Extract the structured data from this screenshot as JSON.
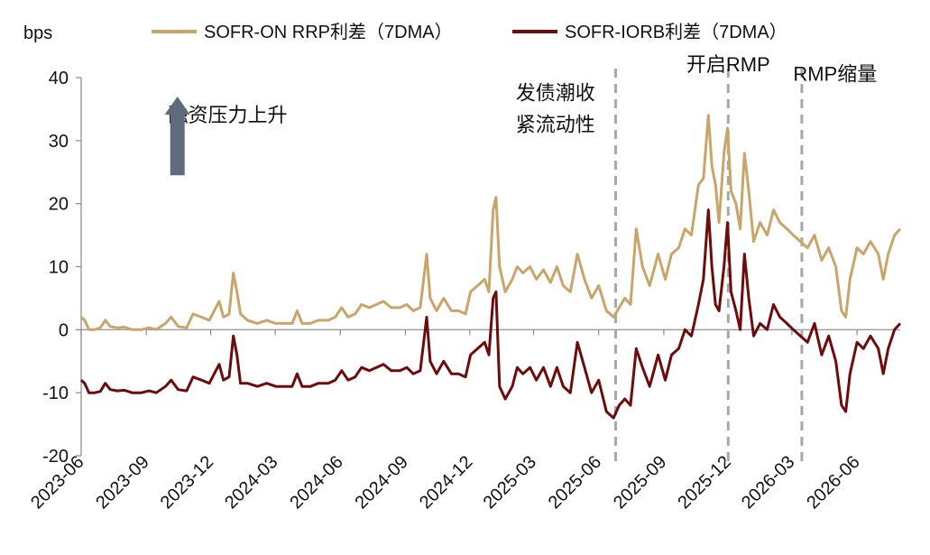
{
  "chart_data": {
    "type": "line",
    "ylabel": "bps",
    "ylim": [
      -20,
      40
    ],
    "yticks": [
      40,
      30,
      20,
      10,
      0,
      -10,
      -20
    ],
    "xlim": [
      "2023-06",
      "2026-08"
    ],
    "xticks": [
      "2023-06",
      "2023-09",
      "2023-12",
      "2024-03",
      "2024-06",
      "2024-09",
      "2024-12",
      "2025-03",
      "2025-06",
      "2025-09",
      "2025-12",
      "2026-03",
      "2026-06"
    ],
    "grid": false,
    "legend": "top",
    "colors": {
      "series1": "#c9a56a",
      "series2": "#6e0b0b",
      "arrow": "#5f6a7d",
      "vline": "#a8a8a8"
    },
    "series": [
      {
        "name": "SOFR-ON RRP利差（7DMA）",
        "points": [
          [
            "2023-06-01",
            2
          ],
          [
            "2023-06-06",
            1.5
          ],
          [
            "2023-06-12",
            0
          ],
          [
            "2023-06-20",
            0
          ],
          [
            "2023-06-28",
            0.3
          ],
          [
            "2023-07-05",
            1.5
          ],
          [
            "2023-07-12",
            0.5
          ],
          [
            "2023-07-22",
            0.3
          ],
          [
            "2023-08-01",
            0.4
          ],
          [
            "2023-08-12",
            0
          ],
          [
            "2023-08-25",
            0
          ],
          [
            "2023-09-05",
            0.3
          ],
          [
            "2023-09-15",
            0
          ],
          [
            "2023-09-28",
            1
          ],
          [
            "2023-10-06",
            2
          ],
          [
            "2023-10-16",
            0.5
          ],
          [
            "2023-10-28",
            0.3
          ],
          [
            "2023-11-06",
            2.5
          ],
          [
            "2023-11-18",
            2
          ],
          [
            "2023-11-29",
            1.5
          ],
          [
            "2023-12-06",
            3
          ],
          [
            "2023-12-13",
            4.5
          ],
          [
            "2023-12-19",
            2
          ],
          [
            "2023-12-27",
            2.5
          ],
          [
            "2024-01-02",
            9
          ],
          [
            "2024-01-07",
            6
          ],
          [
            "2024-01-12",
            2.5
          ],
          [
            "2024-01-22",
            1.5
          ],
          [
            "2024-02-05",
            1
          ],
          [
            "2024-02-18",
            1.5
          ],
          [
            "2024-03-02",
            1
          ],
          [
            "2024-03-15",
            1
          ],
          [
            "2024-03-25",
            1
          ],
          [
            "2024-04-01",
            3
          ],
          [
            "2024-04-08",
            1
          ],
          [
            "2024-04-20",
            1
          ],
          [
            "2024-05-01",
            1.5
          ],
          [
            "2024-05-15",
            1.5
          ],
          [
            "2024-05-25",
            2
          ],
          [
            "2024-06-03",
            3.5
          ],
          [
            "2024-06-12",
            2
          ],
          [
            "2024-06-22",
            2.5
          ],
          [
            "2024-07-01",
            4
          ],
          [
            "2024-07-12",
            3.5
          ],
          [
            "2024-07-22",
            4
          ],
          [
            "2024-08-01",
            4.5
          ],
          [
            "2024-08-12",
            3.5
          ],
          [
            "2024-08-24",
            3.5
          ],
          [
            "2024-09-03",
            4
          ],
          [
            "2024-09-12",
            3
          ],
          [
            "2024-09-22",
            3.5
          ],
          [
            "2024-10-01",
            12
          ],
          [
            "2024-10-06",
            5
          ],
          [
            "2024-10-15",
            3
          ],
          [
            "2024-10-25",
            5
          ],
          [
            "2024-11-05",
            3
          ],
          [
            "2024-11-15",
            3
          ],
          [
            "2024-11-25",
            2.5
          ],
          [
            "2024-12-02",
            6
          ],
          [
            "2024-12-12",
            7
          ],
          [
            "2024-12-22",
            8
          ],
          [
            "2024-12-28",
            6
          ],
          [
            "2025-01-03",
            19
          ],
          [
            "2025-01-07",
            21
          ],
          [
            "2025-01-12",
            10
          ],
          [
            "2025-01-20",
            6
          ],
          [
            "2025-01-30",
            8
          ],
          [
            "2025-02-06",
            10
          ],
          [
            "2025-02-14",
            9
          ],
          [
            "2025-02-24",
            10
          ],
          [
            "2025-03-05",
            8
          ],
          [
            "2025-03-15",
            9.5
          ],
          [
            "2025-03-25",
            7.5
          ],
          [
            "2025-04-03",
            10
          ],
          [
            "2025-04-12",
            7
          ],
          [
            "2025-04-22",
            6
          ],
          [
            "2025-05-02",
            12
          ],
          [
            "2025-05-12",
            8
          ],
          [
            "2025-05-22",
            5
          ],
          [
            "2025-06-01",
            7
          ],
          [
            "2025-06-12",
            3
          ],
          [
            "2025-06-22",
            2
          ],
          [
            "2025-06-30",
            3.5
          ],
          [
            "2025-07-08",
            5
          ],
          [
            "2025-07-16",
            4
          ],
          [
            "2025-07-24",
            16
          ],
          [
            "2025-08-02",
            10
          ],
          [
            "2025-08-12",
            7
          ],
          [
            "2025-08-24",
            12
          ],
          [
            "2025-09-03",
            8
          ],
          [
            "2025-09-12",
            12
          ],
          [
            "2025-09-22",
            13
          ],
          [
            "2025-10-01",
            16
          ],
          [
            "2025-10-10",
            15
          ],
          [
            "2025-10-20",
            23
          ],
          [
            "2025-10-27",
            24
          ],
          [
            "2025-11-03",
            34
          ],
          [
            "2025-11-08",
            26
          ],
          [
            "2025-11-13",
            23
          ],
          [
            "2025-11-18",
            17
          ],
          [
            "2025-11-25",
            28
          ],
          [
            "2025-11-30",
            32
          ],
          [
            "2025-12-05",
            22
          ],
          [
            "2025-12-12",
            20
          ],
          [
            "2025-12-18",
            16
          ],
          [
            "2025-12-24",
            28
          ],
          [
            "2025-12-30",
            22
          ],
          [
            "2026-01-06",
            14
          ],
          [
            "2026-01-15",
            17
          ],
          [
            "2026-01-25",
            15
          ],
          [
            "2026-02-03",
            19
          ],
          [
            "2026-02-12",
            17
          ],
          [
            "2026-02-22",
            16
          ],
          [
            "2026-03-03",
            15
          ],
          [
            "2026-03-13",
            14
          ],
          [
            "2026-03-23",
            13
          ],
          [
            "2026-04-02",
            15
          ],
          [
            "2026-04-12",
            11
          ],
          [
            "2026-04-22",
            13
          ],
          [
            "2026-05-02",
            10
          ],
          [
            "2026-05-10",
            3
          ],
          [
            "2026-05-16",
            2
          ],
          [
            "2026-05-22",
            8
          ],
          [
            "2026-06-01",
            13
          ],
          [
            "2026-06-10",
            12
          ],
          [
            "2026-06-20",
            14
          ],
          [
            "2026-07-01",
            12
          ],
          [
            "2026-07-08",
            8
          ],
          [
            "2026-07-15",
            12
          ],
          [
            "2026-07-24",
            15
          ],
          [
            "2026-08-01",
            16
          ]
        ]
      },
      {
        "name": "SOFR-IORB利差（7DMA）",
        "points": [
          [
            "2023-06-01",
            -8
          ],
          [
            "2023-06-06",
            -8.5
          ],
          [
            "2023-06-12",
            -10
          ],
          [
            "2023-06-20",
            -10
          ],
          [
            "2023-06-28",
            -9.8
          ],
          [
            "2023-07-05",
            -8.5
          ],
          [
            "2023-07-12",
            -9.5
          ],
          [
            "2023-07-22",
            -9.7
          ],
          [
            "2023-08-01",
            -9.6
          ],
          [
            "2023-08-12",
            -10
          ],
          [
            "2023-08-25",
            -10
          ],
          [
            "2023-09-05",
            -9.7
          ],
          [
            "2023-09-15",
            -10
          ],
          [
            "2023-09-28",
            -9
          ],
          [
            "2023-10-06",
            -8
          ],
          [
            "2023-10-16",
            -9.5
          ],
          [
            "2023-10-28",
            -9.7
          ],
          [
            "2023-11-06",
            -7.5
          ],
          [
            "2023-11-18",
            -8
          ],
          [
            "2023-11-29",
            -8.5
          ],
          [
            "2023-12-06",
            -7
          ],
          [
            "2023-12-13",
            -5.5
          ],
          [
            "2023-12-19",
            -8
          ],
          [
            "2023-12-27",
            -7.5
          ],
          [
            "2024-01-02",
            -1
          ],
          [
            "2024-01-07",
            -4
          ],
          [
            "2024-01-12",
            -8.5
          ],
          [
            "2024-01-22",
            -8.5
          ],
          [
            "2024-02-05",
            -9
          ],
          [
            "2024-02-18",
            -8.5
          ],
          [
            "2024-03-02",
            -9
          ],
          [
            "2024-03-15",
            -9
          ],
          [
            "2024-03-25",
            -9
          ],
          [
            "2024-04-01",
            -7
          ],
          [
            "2024-04-08",
            -9
          ],
          [
            "2024-04-20",
            -9
          ],
          [
            "2024-05-01",
            -8.5
          ],
          [
            "2024-05-15",
            -8.5
          ],
          [
            "2024-05-25",
            -8
          ],
          [
            "2024-06-03",
            -6.5
          ],
          [
            "2024-06-12",
            -8
          ],
          [
            "2024-06-22",
            -7.5
          ],
          [
            "2024-07-01",
            -6
          ],
          [
            "2024-07-12",
            -6.5
          ],
          [
            "2024-07-22",
            -6
          ],
          [
            "2024-08-01",
            -5.5
          ],
          [
            "2024-08-12",
            -6.5
          ],
          [
            "2024-08-24",
            -6.5
          ],
          [
            "2024-09-03",
            -6
          ],
          [
            "2024-09-12",
            -7
          ],
          [
            "2024-09-22",
            -6.5
          ],
          [
            "2024-10-01",
            2
          ],
          [
            "2024-10-06",
            -5
          ],
          [
            "2024-10-15",
            -7
          ],
          [
            "2024-10-25",
            -5
          ],
          [
            "2024-11-05",
            -7
          ],
          [
            "2024-11-15",
            -7
          ],
          [
            "2024-11-25",
            -7.5
          ],
          [
            "2024-12-02",
            -4
          ],
          [
            "2024-12-12",
            -3
          ],
          [
            "2024-12-22",
            -2
          ],
          [
            "2024-12-28",
            -4
          ],
          [
            "2025-01-03",
            5
          ],
          [
            "2025-01-07",
            6
          ],
          [
            "2025-01-12",
            -9
          ],
          [
            "2025-01-20",
            -11
          ],
          [
            "2025-01-30",
            -9
          ],
          [
            "2025-02-06",
            -6
          ],
          [
            "2025-02-14",
            -7
          ],
          [
            "2025-02-24",
            -6
          ],
          [
            "2025-03-05",
            -8
          ],
          [
            "2025-03-15",
            -6
          ],
          [
            "2025-03-25",
            -9
          ],
          [
            "2025-04-03",
            -6
          ],
          [
            "2025-04-12",
            -9
          ],
          [
            "2025-04-22",
            -10
          ],
          [
            "2025-05-02",
            -2
          ],
          [
            "2025-05-12",
            -6
          ],
          [
            "2025-05-22",
            -10
          ],
          [
            "2025-06-01",
            -8
          ],
          [
            "2025-06-12",
            -13
          ],
          [
            "2025-06-22",
            -14
          ],
          [
            "2025-06-30",
            -12
          ],
          [
            "2025-07-08",
            -11
          ],
          [
            "2025-07-16",
            -12
          ],
          [
            "2025-07-24",
            -3
          ],
          [
            "2025-08-02",
            -6
          ],
          [
            "2025-08-12",
            -9
          ],
          [
            "2025-08-24",
            -4
          ],
          [
            "2025-09-03",
            -8
          ],
          [
            "2025-09-12",
            -4
          ],
          [
            "2025-09-22",
            -3
          ],
          [
            "2025-10-01",
            0
          ],
          [
            "2025-10-10",
            -1
          ],
          [
            "2025-10-20",
            4
          ],
          [
            "2025-10-27",
            8
          ],
          [
            "2025-11-03",
            19
          ],
          [
            "2025-11-08",
            10
          ],
          [
            "2025-11-13",
            4
          ],
          [
            "2025-11-18",
            3
          ],
          [
            "2025-11-25",
            10
          ],
          [
            "2025-11-30",
            17
          ],
          [
            "2025-12-05",
            6
          ],
          [
            "2025-12-12",
            3
          ],
          [
            "2025-12-18",
            0
          ],
          [
            "2025-12-24",
            12
          ],
          [
            "2025-12-30",
            5
          ],
          [
            "2026-01-06",
            -1
          ],
          [
            "2026-01-15",
            1
          ],
          [
            "2026-01-25",
            0
          ],
          [
            "2026-02-03",
            4
          ],
          [
            "2026-02-12",
            2
          ],
          [
            "2026-02-22",
            1
          ],
          [
            "2026-03-03",
            0
          ],
          [
            "2026-03-13",
            -1
          ],
          [
            "2026-03-23",
            -2
          ],
          [
            "2026-04-02",
            1
          ],
          [
            "2026-04-12",
            -4
          ],
          [
            "2026-04-22",
            -1
          ],
          [
            "2026-05-02",
            -5
          ],
          [
            "2026-05-10",
            -12
          ],
          [
            "2026-05-16",
            -13
          ],
          [
            "2026-05-22",
            -7
          ],
          [
            "2026-06-01",
            -2
          ],
          [
            "2026-06-10",
            -3
          ],
          [
            "2026-06-20",
            -1
          ],
          [
            "2026-07-01",
            -3
          ],
          [
            "2026-07-08",
            -7
          ],
          [
            "2026-07-15",
            -3
          ],
          [
            "2026-07-24",
            0
          ],
          [
            "2026-08-01",
            1
          ]
        ]
      }
    ],
    "vlines": [
      "2025-06-25",
      "2025-12-01",
      "2026-03-15"
    ],
    "annotations": [
      {
        "text": "融资压力上升",
        "at": [
          "2023-12-25",
          33
        ]
      },
      {
        "text": "发债潮收",
        "at": [
          "2025-04-01",
          36.5
        ]
      },
      {
        "text": "紧流动性",
        "at": [
          "2025-04-01",
          31.5
        ]
      },
      {
        "text": "开启RMP",
        "at": [
          "2025-12-01",
          41
        ]
      },
      {
        "text": "RMP缩量",
        "at": [
          "2026-05-01",
          39.5
        ]
      }
    ],
    "arrow": {
      "from": [
        "2023-10-15",
        24.5
      ],
      "to": [
        "2023-10-15",
        37
      ]
    }
  }
}
